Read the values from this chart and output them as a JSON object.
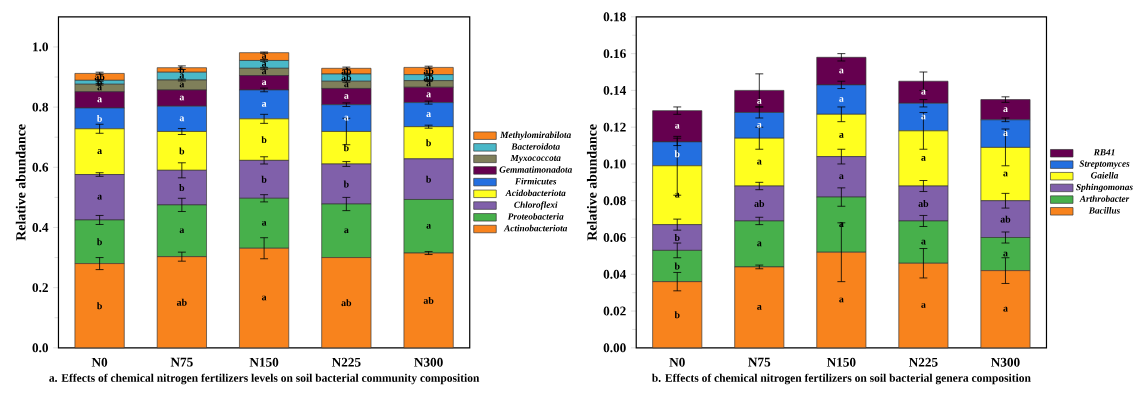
{
  "chart_data": [
    {
      "type": "bar",
      "stacked": true,
      "title": "a. Effects of chemical nitrogen fertilizers levels on soil bacterial community composition",
      "ylabel": "Relative abundance",
      "categories": [
        "N0",
        "N75",
        "N150",
        "N225",
        "N300"
      ],
      "ylim": [
        0,
        1.1
      ],
      "yticks": [
        {
          "value": 0,
          "label": "0.0"
        },
        {
          "value": 0.2,
          "label": "0.2"
        },
        {
          "value": 0.4,
          "label": "0.4"
        },
        {
          "value": 0.6,
          "label": "0.6"
        },
        {
          "value": 0.8,
          "label": "0.8"
        },
        {
          "value": 1.0,
          "label": "1.0"
        }
      ],
      "legend": "right",
      "series": [
        {
          "name": "Actinobacteriota",
          "color": "#f8831d",
          "values": [
            0.28,
            0.303,
            0.331,
            0.3,
            0.315
          ],
          "errors": [
            0.02,
            0.015,
            0.035,
            null,
            0.005
          ],
          "value_labels": [
            "b",
            "ab",
            "a",
            "ab",
            "ab"
          ]
        },
        {
          "name": "Proteobacteria",
          "color": "#47b04b",
          "values": [
            0.145,
            0.172,
            0.166,
            0.178,
            0.178
          ],
          "errors": [
            0.015,
            0.022,
            0.012,
            0.022,
            null
          ],
          "value_labels": [
            "b",
            "a",
            "a",
            "a",
            "a"
          ]
        },
        {
          "name": "Chloroflexi",
          "color": "#8060aa",
          "values": [
            0.151,
            0.115,
            0.126,
            0.133,
            0.135
          ],
          "errors": [
            0.006,
            0.025,
            0.012,
            0.008,
            null
          ],
          "value_labels": [
            "a",
            "b",
            "b",
            "b",
            "b"
          ]
        },
        {
          "name": "Acidobacteriota",
          "color": "#ffff1f",
          "values": [
            0.152,
            0.129,
            0.138,
            0.108,
            0.107
          ],
          "errors": [
            0.015,
            0.01,
            0.015,
            0.044,
            0.005
          ],
          "value_labels": [
            "a",
            "b",
            "b",
            "b",
            "b"
          ]
        },
        {
          "name": "Firmicutes",
          "color": "#236fe0",
          "values": [
            0.069,
            0.084,
            0.096,
            0.089,
            0.08
          ],
          "errors": [
            null,
            null,
            0.006,
            0.006,
            0.005
          ],
          "value_labels": [
            "b",
            "a",
            "a",
            "a",
            "a"
          ]
        },
        {
          "name": "Gemmatimonadota",
          "color": "#65004f",
          "values": [
            0.054,
            0.054,
            0.048,
            0.054,
            0.051
          ],
          "errors": [
            null,
            null,
            null,
            null,
            null
          ],
          "value_labels": [
            "a",
            "a",
            "a",
            "a",
            "a"
          ]
        },
        {
          "name": "Myxococcota",
          "color": "#7f7f5a",
          "values": [
            0.025,
            0.033,
            0.024,
            0.024,
            0.022
          ],
          "errors": [
            0.003,
            0.003,
            0.003,
            0.003,
            0.003
          ],
          "value_labels": [
            "a",
            "a",
            "a",
            "a",
            "a"
          ]
        },
        {
          "name": "Bacteroidota",
          "color": "#4ab8c8",
          "values": [
            0.013,
            0.026,
            0.026,
            0.024,
            0.02
          ],
          "errors": [
            0.003,
            null,
            0.003,
            0.003,
            0.003
          ],
          "value_labels": [
            "b",
            "a",
            "a",
            "ab",
            "ab"
          ]
        },
        {
          "name": "Methylomirabilota",
          "color": "#f8831d",
          "values": [
            0.023,
            0.015,
            0.026,
            0.019,
            0.024
          ],
          "errors": [
            0.004,
            0.006,
            0.002,
            0.004,
            0.004
          ],
          "value_labels": [
            "ab",
            "b",
            "a",
            "ab",
            "ab"
          ]
        }
      ]
    },
    {
      "type": "bar",
      "stacked": true,
      "title": "b. Effects of chemical nitrogen fertilizers on soil bacterial genera  composition",
      "ylabel": "Relative abundance",
      "categories": [
        "N0",
        "N75",
        "N150",
        "N225",
        "N300"
      ],
      "ylim": [
        0,
        0.18
      ],
      "yticks": [
        {
          "value": 0,
          "label": "0.00"
        },
        {
          "value": 0.02,
          "label": "0.02"
        },
        {
          "value": 0.04,
          "label": "0.04"
        },
        {
          "value": 0.06,
          "label": "0.06"
        },
        {
          "value": 0.08,
          "label": "0.08"
        },
        {
          "value": 0.1,
          "label": "0.10"
        },
        {
          "value": 0.12,
          "label": "0.12"
        },
        {
          "value": 0.14,
          "label": "0.14"
        },
        {
          "value": 0.16,
          "label": "0.16"
        },
        {
          "value": 0.18,
          "label": "0.18"
        }
      ],
      "legend": "right",
      "series": [
        {
          "name": "Bacillus",
          "color": "#f8831d",
          "values": [
            0.036,
            0.044,
            0.052,
            0.046,
            0.042
          ],
          "errors": [
            0.005,
            0.001,
            0.016,
            0.008,
            0.007
          ],
          "value_labels": [
            "b",
            "a",
            "a",
            "a",
            "a"
          ]
        },
        {
          "name": "Arthrobacter",
          "color": "#47b04b",
          "values": [
            0.017,
            0.025,
            0.03,
            0.023,
            0.018
          ],
          "errors": [
            0.004,
            0.002,
            0.005,
            0.003,
            0.003
          ],
          "value_labels": [
            "b",
            "a",
            "a",
            "a",
            "a"
          ]
        },
        {
          "name": "Sphingomonas",
          "color": "#8060aa",
          "values": [
            0.014,
            0.019,
            0.022,
            0.019,
            0.02
          ],
          "errors": [
            0.003,
            0.002,
            0.004,
            0.003,
            0.004
          ],
          "value_labels": [
            "b",
            "ab",
            "a",
            "ab",
            "ab"
          ]
        },
        {
          "name": "Gaiella",
          "color": "#ffff1f",
          "values": [
            0.032,
            0.026,
            0.023,
            0.03,
            0.029
          ],
          "errors": [
            0.016,
            0.006,
            0.004,
            0.01,
            0.01
          ],
          "value_labels": [
            "a",
            "a",
            "a",
            "a",
            "a"
          ]
        },
        {
          "name": "Streptomyces",
          "color": "#236fe0",
          "values": [
            0.013,
            0.014,
            0.016,
            0.015,
            0.015
          ],
          "errors": [
            0.002,
            0.003,
            0.002,
            0.002,
            0.001
          ],
          "value_labels": [
            "b",
            "a",
            "a",
            "a",
            "a"
          ]
        },
        {
          "name": "RB41",
          "color": "#65004f",
          "values": [
            0.017,
            0.012,
            0.015,
            0.012,
            0.011
          ],
          "errors": [
            0.002,
            0.009,
            0.002,
            0.005,
            0.0015
          ],
          "value_labels": [
            "a",
            "a",
            "a",
            "a",
            "a"
          ]
        }
      ]
    }
  ]
}
